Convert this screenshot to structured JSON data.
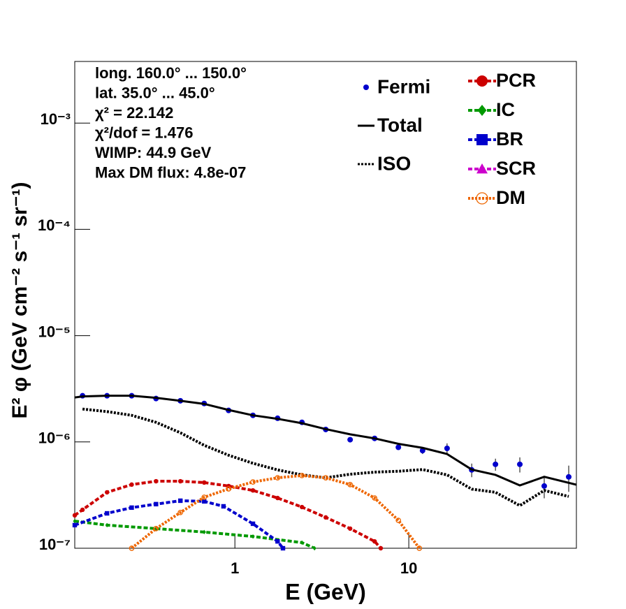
{
  "chart_data": {
    "type": "line",
    "log_x": true,
    "log_y": true,
    "x_label": "E (GeV)",
    "y_label": "E² φ (GeV cm⁻² s⁻¹ sr⁻¹)",
    "annotations": [
      "long. 160.0° ... 150.0°",
      "lat. 35.0° ... 45.0°",
      "χ² = 22.142",
      "χ²/dof = 1.476",
      "WIMP: 44.9 GeV",
      "Max DM flux: 4.8e-07"
    ],
    "xlim": [
      0.12,
      92
    ],
    "ylim": [
      1e-07,
      0.0038
    ],
    "xticks": [
      1,
      10
    ],
    "yticks": [
      {
        "value": 1e-07,
        "label": "10⁻⁷"
      },
      {
        "value": 1e-06,
        "label": "10⁻⁶"
      },
      {
        "value": 1e-05,
        "label": "10⁻⁵"
      },
      {
        "value": 0.0001,
        "label": "10⁻⁴"
      },
      {
        "value": 0.001,
        "label": "10⁻³"
      }
    ],
    "series": [
      {
        "name": "Fermi",
        "color": "#0000cc",
        "style": "points",
        "marker": "circle",
        "x": [
          0.133,
          0.184,
          0.255,
          0.352,
          0.486,
          0.666,
          0.92,
          1.27,
          1.76,
          2.43,
          3.33,
          4.6,
          6.36,
          8.71,
          12.0,
          16.6,
          23.0,
          31.5,
          43.5,
          60.1,
          83.1
        ],
        "values": [
          2.72e-06,
          2.72e-06,
          2.72e-06,
          2.56e-06,
          2.44e-06,
          2.3e-06,
          1.98e-06,
          1.78e-06,
          1.67e-06,
          1.53e-06,
          1.31e-06,
          1.05e-06,
          1.08e-06,
          8.9e-07,
          8.3e-07,
          8.7e-07,
          5.46e-07,
          6.16e-07,
          6.16e-07,
          3.85e-07,
          4.69e-07
        ],
        "errors": [
          5e-08,
          5e-08,
          5e-08,
          5e-08,
          5e-08,
          4e-08,
          4e-08,
          4e-08,
          3e-08,
          3e-08,
          3e-08,
          2e-08,
          3e-08,
          4e-08,
          6e-08,
          1e-07,
          8e-08,
          8e-08,
          1e-07,
          9e-08,
          1.3e-07
        ]
      },
      {
        "name": "Total",
        "color": "#000000",
        "style": "solid",
        "x": [
          0.12,
          0.133,
          0.184,
          0.255,
          0.352,
          0.486,
          0.666,
          0.92,
          1.27,
          1.76,
          2.43,
          3.33,
          4.6,
          6.36,
          8.71,
          12.0,
          16.6,
          23.0,
          31.5,
          43.5,
          60.1,
          92
        ],
        "values": [
          2.62e-06,
          2.68e-06,
          2.72e-06,
          2.72e-06,
          2.6e-06,
          2.44e-06,
          2.28e-06,
          2e-06,
          1.78e-06,
          1.65e-06,
          1.5e-06,
          1.32e-06,
          1.18e-06,
          1.08e-06,
          9.6e-07,
          8.8e-07,
          7.7e-07,
          5.5e-07,
          4.9e-07,
          3.9e-07,
          4.7e-07,
          3.96e-07
        ]
      },
      {
        "name": "ISO",
        "color": "#000000",
        "style": "dotted",
        "x": [
          0.133,
          0.184,
          0.255,
          0.352,
          0.486,
          0.666,
          0.92,
          1.27,
          1.76,
          2.43,
          3.33,
          4.6,
          6.36,
          8.71,
          12.0,
          16.6,
          23.0,
          31.5,
          43.5,
          60.1,
          83.1
        ],
        "values": [
          2.04e-06,
          1.93e-06,
          1.78e-06,
          1.53e-06,
          1.22e-06,
          9.3e-07,
          7.5e-07,
          6.3e-07,
          5.46e-07,
          4.9e-07,
          4.6e-07,
          4.97e-07,
          5.2e-07,
          5.3e-07,
          5.5e-07,
          4.9e-07,
          3.6e-07,
          3.36e-07,
          2.52e-07,
          3.5e-07,
          3.07e-07
        ]
      },
      {
        "name": "PCR",
        "color": "#cc0000",
        "style": "dashed",
        "marker": "circle",
        "x": [
          0.12,
          0.133,
          0.184,
          0.255,
          0.352,
          0.486,
          0.666,
          0.92,
          1.27,
          1.76,
          2.43,
          3.33,
          4.6,
          6.36,
          6.9
        ],
        "values": [
          2.04e-07,
          2.3e-07,
          3.36e-07,
          3.97e-07,
          4.27e-07,
          4.27e-07,
          4.15e-07,
          3.85e-07,
          3.5e-07,
          2.97e-07,
          2.44e-07,
          1.95e-07,
          1.53e-07,
          1.16e-07,
          1e-07
        ]
      },
      {
        "name": "IC",
        "color": "#009900",
        "style": "dashed",
        "marker": "diamond",
        "x": [
          0.12,
          0.184,
          0.352,
          0.666,
          1.27,
          2.43,
          2.87
        ],
        "values": [
          1.8e-07,
          1.65e-07,
          1.53e-07,
          1.42e-07,
          1.29e-07,
          1.13e-07,
          1e-07
        ]
      },
      {
        "name": "BR",
        "color": "#0000cc",
        "style": "dashed",
        "marker": "square",
        "x": [
          0.12,
          0.184,
          0.255,
          0.352,
          0.486,
          0.666,
          0.86,
          1.27,
          1.76,
          1.89
        ],
        "values": [
          1.65e-07,
          2.13e-07,
          2.41e-07,
          2.6e-07,
          2.8e-07,
          2.76e-07,
          2.48e-07,
          1.7e-07,
          1.16e-07,
          1e-07
        ]
      },
      {
        "name": "SCR",
        "color": "#cc00cc",
        "style": "dashed",
        "marker": "triangle",
        "x": [],
        "values": []
      },
      {
        "name": "DM",
        "color": "#ee6600",
        "style": "dotted",
        "marker": "open-circle",
        "x": [
          0.255,
          0.352,
          0.486,
          0.666,
          0.92,
          1.27,
          1.76,
          2.43,
          3.33,
          4.6,
          6.36,
          8.71,
          11.5
        ],
        "values": [
          1e-07,
          1.53e-07,
          2.17e-07,
          3.02e-07,
          3.62e-07,
          4.2e-07,
          4.6e-07,
          4.83e-07,
          4.6e-07,
          3.97e-07,
          2.97e-07,
          1.83e-07,
          1e-07
        ]
      }
    ]
  }
}
